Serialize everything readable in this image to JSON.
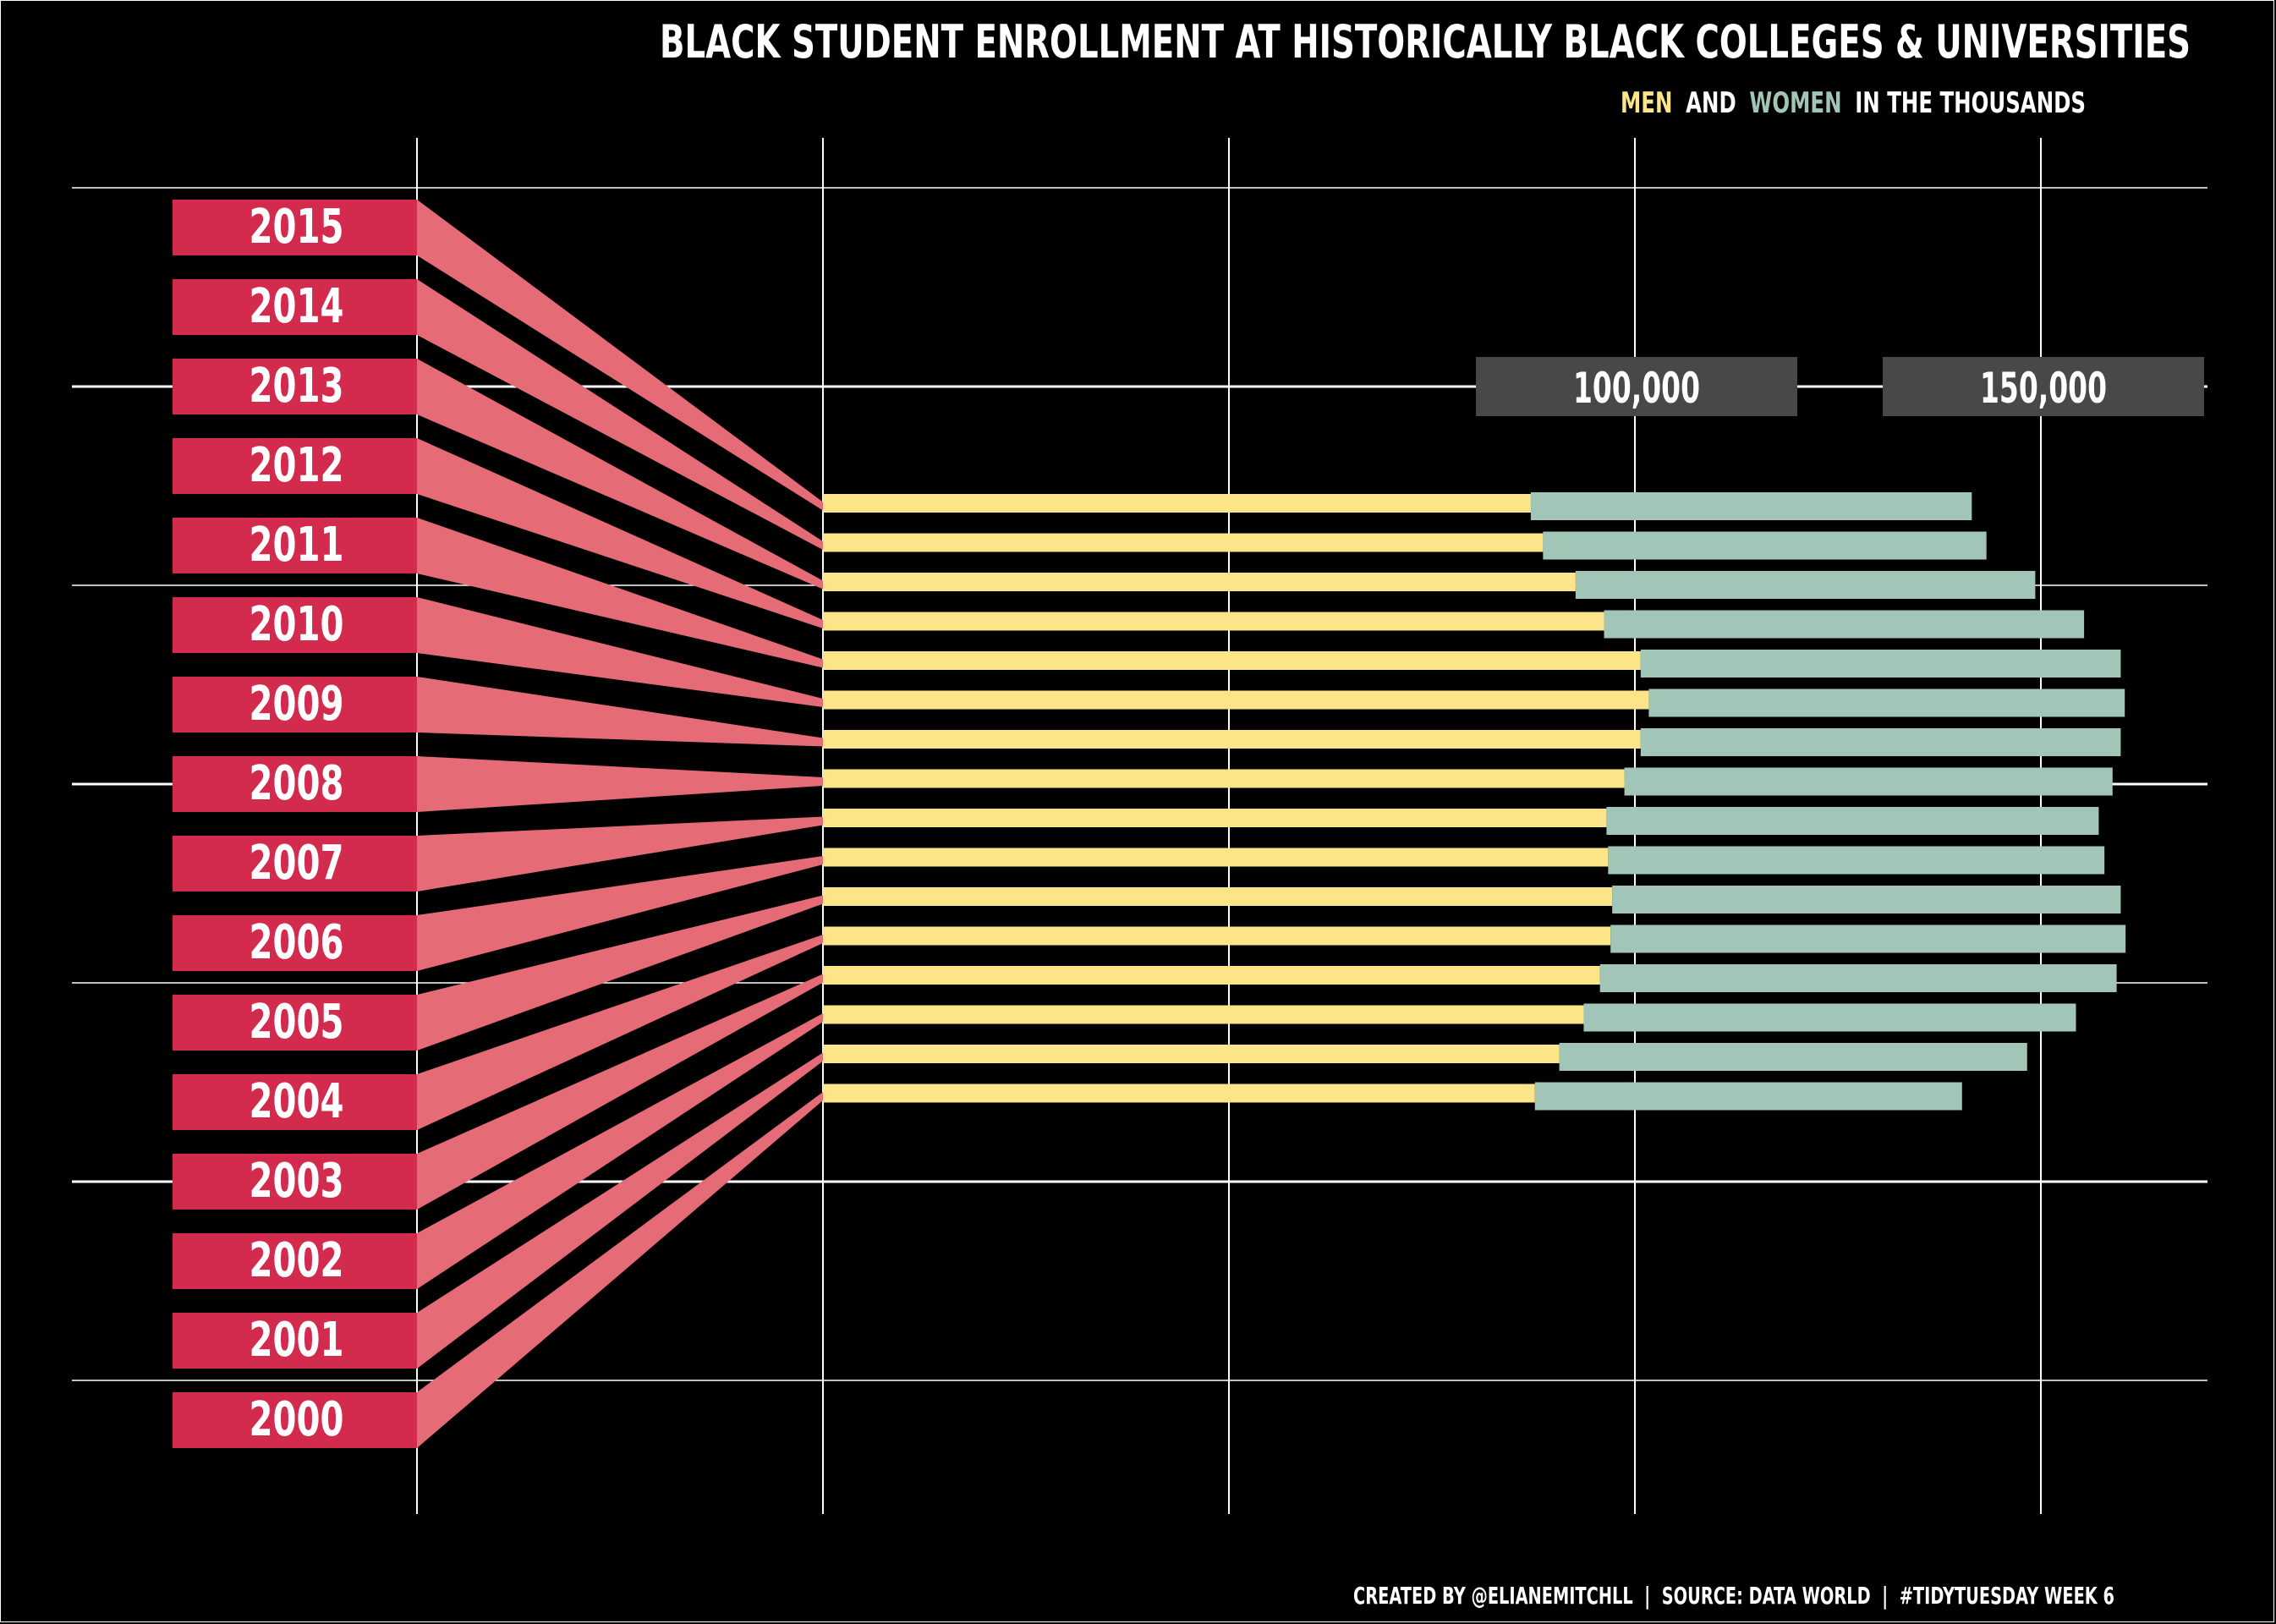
{
  "chart_data": {
    "type": "bar",
    "title": "BLACK STUDENT ENROLLMENT AT HISTORICALLY BLACK COLLEGES & UNIVERSITIES",
    "subtitle": {
      "men": "MEN",
      "and": "AND",
      "women": "WOMEN",
      "rest": "IN THE THOUSANDS"
    },
    "caption": "CREATED BY @ELIANEMITCHLL  |  SOURCE: DATA WORLD  |  #TIDYTUESDAY WEEK 6",
    "categories": [
      "2015",
      "2014",
      "2013",
      "2012",
      "2011",
      "2010",
      "2009",
      "2008",
      "2007",
      "2006",
      "2005",
      "2004",
      "2003",
      "2002",
      "2001",
      "2000"
    ],
    "series": [
      {
        "name": "MEN",
        "values": [
          87,
          88.5,
          92.5,
          96,
          100.5,
          101.5,
          100.5,
          98.5,
          96.3,
          96.5,
          97,
          96.8,
          95.5,
          93.5,
          90.5,
          87.5
        ]
      },
      {
        "name": "WOMEN",
        "values": [
          54.2,
          54.5,
          56.5,
          59,
          59,
          58.5,
          59,
          60,
          60.5,
          61,
          62.5,
          63.3,
          63.5,
          60.5,
          57.5,
          52.5
        ]
      }
    ],
    "xticks": [
      "100,000",
      "150,000"
    ],
    "xtick_values": [
      100000,
      150000
    ],
    "colors": {
      "men": "#FCE588",
      "women": "#A1C6B7",
      "year_label_bg": "#D22B4D",
      "connector": "#E56B77",
      "tick_box": "#484848",
      "grid": "#ffffff",
      "background": "#000000",
      "text": "#ffffff"
    }
  }
}
